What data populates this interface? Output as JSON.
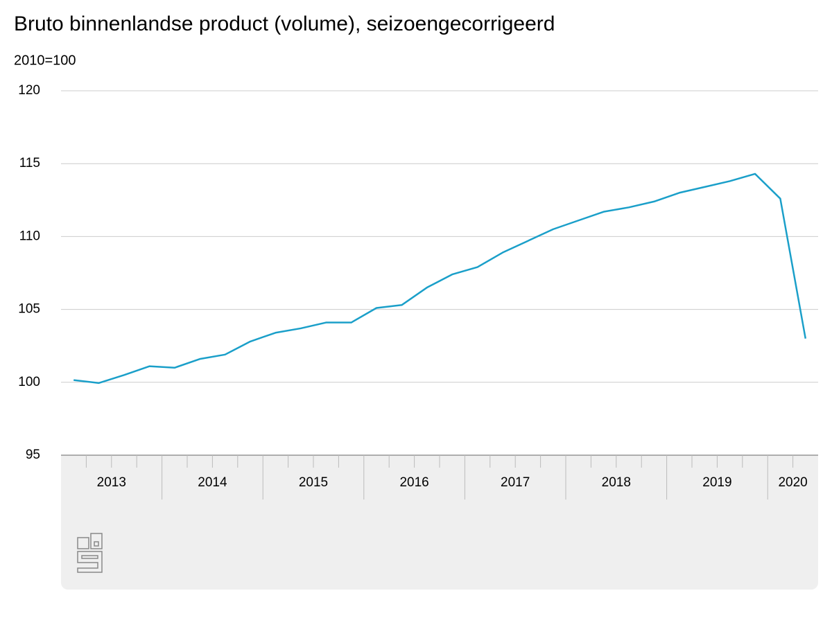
{
  "chart_data": {
    "type": "line",
    "title": "Bruto binnenlandse product (volume), seizoengecorrigeerd",
    "subtitle": "2010=100",
    "categories": [
      null,
      null,
      null,
      null,
      null,
      null,
      null,
      null,
      null,
      null,
      null,
      null,
      null,
      null,
      null,
      null,
      null,
      null,
      null,
      null,
      null,
      null,
      null,
      null,
      null,
      null,
      null,
      null,
      null,
      null
    ],
    "x_groups": [
      "2013",
      "2014",
      "2015",
      "2016",
      "2017",
      "2018",
      "2019",
      "2020"
    ],
    "series": [
      {
        "color": "#1a9fc9",
        "values": [
          100.15,
          99.95,
          100.5,
          101.1,
          101.0,
          101.6,
          101.9,
          102.8,
          103.4,
          103.7,
          104.1,
          104.1,
          105.1,
          105.3,
          106.5,
          107.4,
          107.9,
          108.9,
          109.7,
          110.5,
          111.1,
          111.7,
          112.0,
          112.4,
          113.0,
          113.4,
          113.8,
          114.3,
          112.6,
          103.0
        ]
      }
    ],
    "ylim": [
      95,
      120
    ],
    "yticks": [
      95,
      100,
      105,
      110,
      115,
      120
    ],
    "grid": true
  }
}
